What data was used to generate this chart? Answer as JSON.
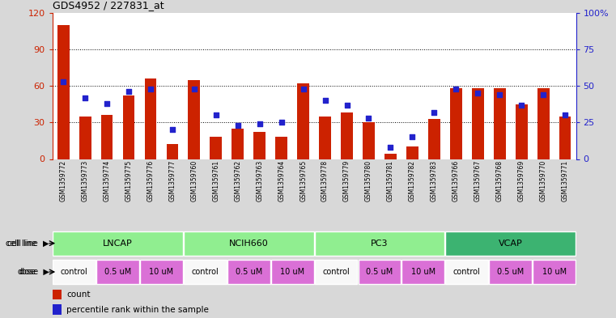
{
  "title": "GDS4952 / 227831_at",
  "samples": [
    "GSM1359772",
    "GSM1359773",
    "GSM1359774",
    "GSM1359775",
    "GSM1359776",
    "GSM1359777",
    "GSM1359760",
    "GSM1359761",
    "GSM1359762",
    "GSM1359763",
    "GSM1359764",
    "GSM1359765",
    "GSM1359778",
    "GSM1359779",
    "GSM1359780",
    "GSM1359781",
    "GSM1359782",
    "GSM1359783",
    "GSM1359766",
    "GSM1359767",
    "GSM1359768",
    "GSM1359769",
    "GSM1359770",
    "GSM1359771"
  ],
  "counts": [
    110,
    35,
    36,
    52,
    66,
    12,
    65,
    18,
    25,
    22,
    18,
    62,
    35,
    38,
    30,
    4,
    10,
    33,
    58,
    58,
    58,
    45,
    58,
    35
  ],
  "percentile_ranks": [
    53,
    42,
    38,
    46,
    48,
    20,
    48,
    30,
    23,
    24,
    25,
    48,
    40,
    37,
    28,
    8,
    15,
    32,
    48,
    45,
    44,
    37,
    44,
    30
  ],
  "cell_lines": [
    {
      "name": "LNCAP",
      "start": 0,
      "end": 5,
      "color": "#90EE90"
    },
    {
      "name": "NCIH660",
      "start": 6,
      "end": 11,
      "color": "#90EE90"
    },
    {
      "name": "PC3",
      "start": 12,
      "end": 17,
      "color": "#90EE90"
    },
    {
      "name": "VCAP",
      "start": 18,
      "end": 23,
      "color": "#3CB371"
    }
  ],
  "dose_groups": [
    {
      "label": "control",
      "start": 0,
      "end": 1,
      "color": "#F8F8F8"
    },
    {
      "label": "0.5 uM",
      "start": 2,
      "end": 3,
      "color": "#DA70D6"
    },
    {
      "label": "10 uM",
      "start": 4,
      "end": 5,
      "color": "#DA70D6"
    },
    {
      "label": "control",
      "start": 6,
      "end": 7,
      "color": "#F8F8F8"
    },
    {
      "label": "0.5 uM",
      "start": 8,
      "end": 9,
      "color": "#DA70D6"
    },
    {
      "label": "10 uM",
      "start": 10,
      "end": 11,
      "color": "#DA70D6"
    },
    {
      "label": "control",
      "start": 12,
      "end": 13,
      "color": "#F8F8F8"
    },
    {
      "label": "0.5 uM",
      "start": 14,
      "end": 15,
      "color": "#DA70D6"
    },
    {
      "label": "10 uM",
      "start": 16,
      "end": 17,
      "color": "#DA70D6"
    },
    {
      "label": "control",
      "start": 18,
      "end": 19,
      "color": "#F8F8F8"
    },
    {
      "label": "0.5 uM",
      "start": 20,
      "end": 21,
      "color": "#DA70D6"
    },
    {
      "label": "10 uM",
      "start": 22,
      "end": 23,
      "color": "#DA70D6"
    }
  ],
  "ylim_left": [
    0,
    120
  ],
  "ylim_right": [
    0,
    100
  ],
  "yticks_left": [
    0,
    30,
    60,
    90,
    120
  ],
  "yticks_right": [
    0,
    25,
    50,
    75,
    100
  ],
  "bar_color": "#CC2200",
  "dot_color": "#2222CC",
  "bg_color": "#D8D8D8",
  "plot_bg": "#FFFFFF",
  "left_axis_color": "#CC2200",
  "right_axis_color": "#2222CC"
}
